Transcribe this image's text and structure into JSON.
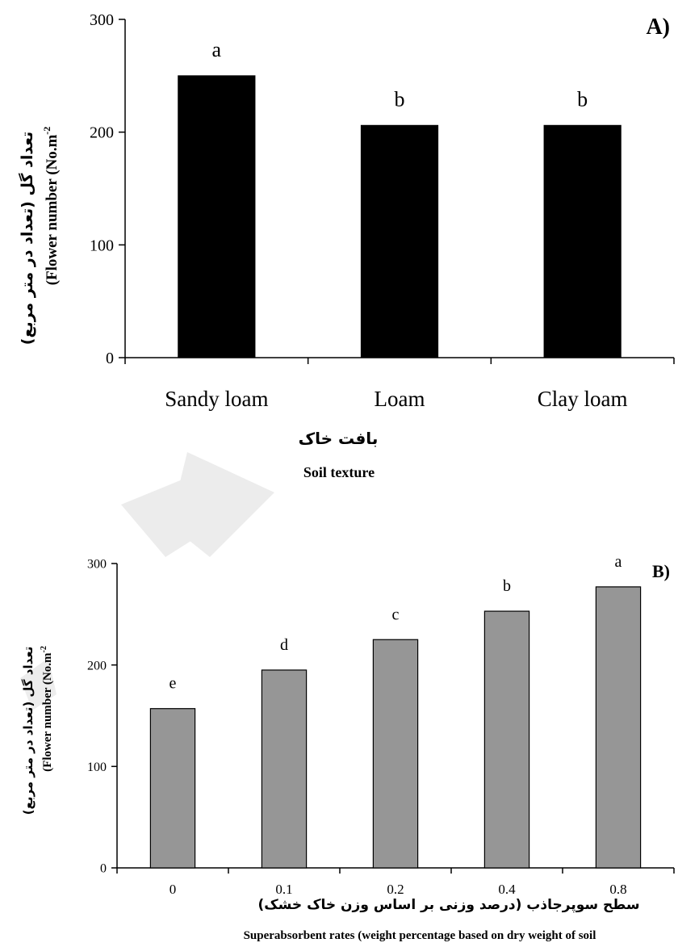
{
  "chart_data": [
    {
      "panel_label": "A)",
      "type": "bar",
      "categories": [
        "Sandy loam",
        "Loam",
        "Clay loam"
      ],
      "values": [
        250,
        206,
        206
      ],
      "letters": [
        "a",
        "b",
        "b"
      ],
      "ylim": [
        0,
        300
      ],
      "yticks": [
        "0",
        "100",
        "200",
        "300"
      ],
      "ylabel_fa": "تعداد گل (تعداد در متر مربع)",
      "ylabel_en": "(Flower number (No.m",
      "ylabel_en_sup": "-2",
      "xlabel_fa": "بافت خاک",
      "xlabel_en": "Soil texture",
      "bar_color": "#000000",
      "grid": false
    },
    {
      "panel_label": "B)",
      "type": "bar",
      "categories": [
        "0",
        "0.1",
        "0.2",
        "0.4",
        "0.8"
      ],
      "values": [
        157,
        195,
        225,
        253,
        277
      ],
      "letters": [
        "e",
        "d",
        "c",
        "b",
        "a"
      ],
      "ylim": [
        0,
        300
      ],
      "yticks": [
        "0",
        "100",
        "200",
        "300"
      ],
      "ylabel_fa": "تعداد گل (تعداد در متر مربع)",
      "ylabel_en": "(Flower number (No.m",
      "ylabel_en_sup": "-2",
      "xlabel_fa": "سطح سوپرجاذب (درصد وزنی بر اساس وزن خاک خشک)",
      "xlabel_en": "Superabsorbent rates (weight percentage based on dry weight of soil",
      "bar_color": "#969696",
      "grid": false
    }
  ]
}
